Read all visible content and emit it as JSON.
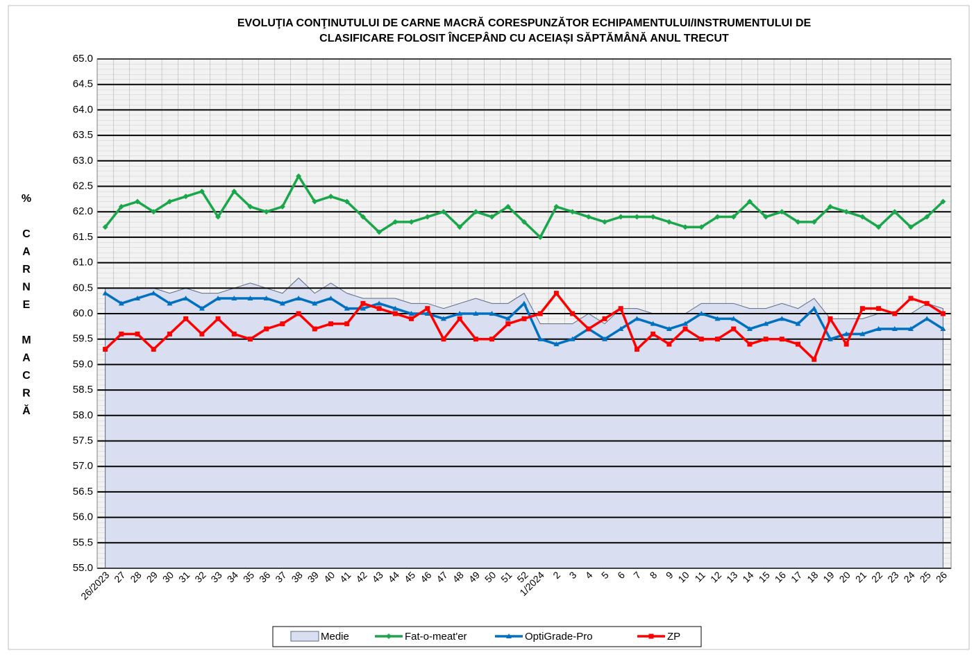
{
  "chart_data": {
    "type": "line",
    "title": [
      "EVOLUŢIA CONŢINUTULUI DE CARNE MACRĂ CORESPUNZĂTOR  ECHIPAMENTULUI/INSTRUMENTULUI DE",
      "CLASIFICARE FOLOSIT ÎNCEPÂND CU ACEIAȘI SĂPTĂMÂNĂ ANUL TRECUT"
    ],
    "y_label": "% CARNE MACRĂ",
    "categories": [
      "26/2023",
      "27",
      "28",
      "29",
      "30",
      "31",
      "32",
      "33",
      "34",
      "35",
      "36",
      "37",
      "38",
      "39",
      "40",
      "41",
      "42",
      "43",
      "44",
      "45",
      "46",
      "47",
      "48",
      "49",
      "50",
      "51",
      "52",
      "1/2024",
      "2",
      "3",
      "4",
      "5",
      "6",
      "7",
      "8",
      "9",
      "10",
      "11",
      "12",
      "13",
      "14",
      "15",
      "16",
      "17",
      "18",
      "19",
      "20",
      "21",
      "22",
      "23",
      "24",
      "25",
      "26"
    ],
    "ylim": [
      55,
      65
    ],
    "yticks": [
      {
        "value": 55,
        "label": "55.0"
      },
      55.5,
      {
        "value": 56,
        "label": "56.0"
      },
      56.5,
      {
        "value": 57,
        "label": "57.0"
      },
      57.5,
      {
        "value": 58,
        "label": "58.0"
      },
      58.5,
      {
        "value": 59,
        "label": "59.0"
      },
      59.5,
      {
        "value": 60,
        "label": "60.0"
      },
      60.5,
      {
        "value": 61,
        "label": "61.0"
      },
      61.5,
      {
        "value": 62,
        "label": "62.0"
      },
      62.5,
      {
        "value": 63,
        "label": "63.0"
      },
      63.5,
      {
        "value": 64,
        "label": "64.0"
      },
      64.5,
      {
        "value": 65,
        "label": "65.0"
      }
    ],
    "grid": true,
    "legend": "bottom",
    "series": [
      {
        "name": "Medie",
        "style": "area",
        "color": "#d9dff0",
        "values": [
          60.5,
          60.5,
          60.5,
          60.5,
          60.4,
          60.5,
          60.4,
          60.4,
          60.5,
          60.6,
          60.5,
          60.4,
          60.7,
          60.4,
          60.6,
          60.4,
          60.3,
          60.3,
          60.3,
          60.2,
          60.2,
          60.1,
          60.2,
          60.3,
          60.2,
          60.2,
          60.4,
          59.8,
          59.8,
          59.8,
          60.0,
          59.8,
          60.1,
          60.1,
          60.0,
          60.0,
          60.0,
          60.2,
          60.2,
          60.2,
          60.1,
          60.1,
          60.2,
          60.1,
          60.3,
          59.9,
          59.9,
          59.9,
          60.0,
          60.0,
          60.0,
          60.2,
          60.1
        ]
      },
      {
        "name": "Fat-o-meat'er",
        "style": "line",
        "marker": "diamond",
        "color": "#1aa64a",
        "values": [
          61.7,
          62.1,
          62.2,
          62.0,
          62.2,
          62.3,
          62.4,
          61.9,
          62.4,
          62.1,
          62.0,
          62.1,
          62.7,
          62.2,
          62.3,
          62.2,
          61.9,
          61.6,
          61.8,
          61.8,
          61.9,
          62.0,
          61.7,
          62.0,
          61.9,
          62.1,
          61.8,
          61.5,
          62.1,
          62.0,
          61.9,
          61.8,
          61.9,
          61.9,
          61.9,
          61.8,
          61.7,
          61.7,
          61.9,
          61.9,
          62.2,
          61.9,
          62.0,
          61.8,
          61.8,
          62.1,
          62.0,
          61.9,
          61.7,
          62.0,
          61.7,
          61.9,
          62.2
        ]
      },
      {
        "name": "OptiGrade-Pro",
        "style": "line",
        "marker": "triangle",
        "color": "#0070c0",
        "values": [
          60.4,
          60.2,
          60.3,
          60.4,
          60.2,
          60.3,
          60.1,
          60.3,
          60.3,
          60.3,
          60.3,
          60.2,
          60.3,
          60.2,
          60.3,
          60.1,
          60.1,
          60.2,
          60.1,
          60.0,
          60.0,
          59.9,
          60.0,
          60.0,
          60.0,
          59.9,
          60.2,
          59.5,
          59.4,
          59.5,
          59.7,
          59.5,
          59.7,
          59.9,
          59.8,
          59.7,
          59.8,
          60.0,
          59.9,
          59.9,
          59.7,
          59.8,
          59.9,
          59.8,
          60.1,
          59.5,
          59.6,
          59.6,
          59.7,
          59.7,
          59.7,
          59.9,
          59.7
        ]
      },
      {
        "name": "ZP",
        "style": "line",
        "marker": "square",
        "color": "#ff0000",
        "values": [
          59.3,
          59.6,
          59.6,
          59.3,
          59.6,
          59.9,
          59.6,
          59.9,
          59.6,
          59.5,
          59.7,
          59.8,
          60.0,
          59.7,
          59.8,
          59.8,
          60.2,
          60.1,
          60.0,
          59.9,
          60.1,
          59.5,
          59.9,
          59.5,
          59.5,
          59.8,
          59.9,
          60.0,
          60.4,
          60.0,
          59.7,
          59.9,
          60.1,
          59.3,
          59.6,
          59.4,
          59.7,
          59.5,
          59.5,
          59.7,
          59.4,
          59.5,
          59.5,
          59.4,
          59.1,
          59.9,
          59.4,
          60.1,
          60.1,
          60.0,
          60.3,
          60.2,
          60.0
        ]
      }
    ]
  }
}
